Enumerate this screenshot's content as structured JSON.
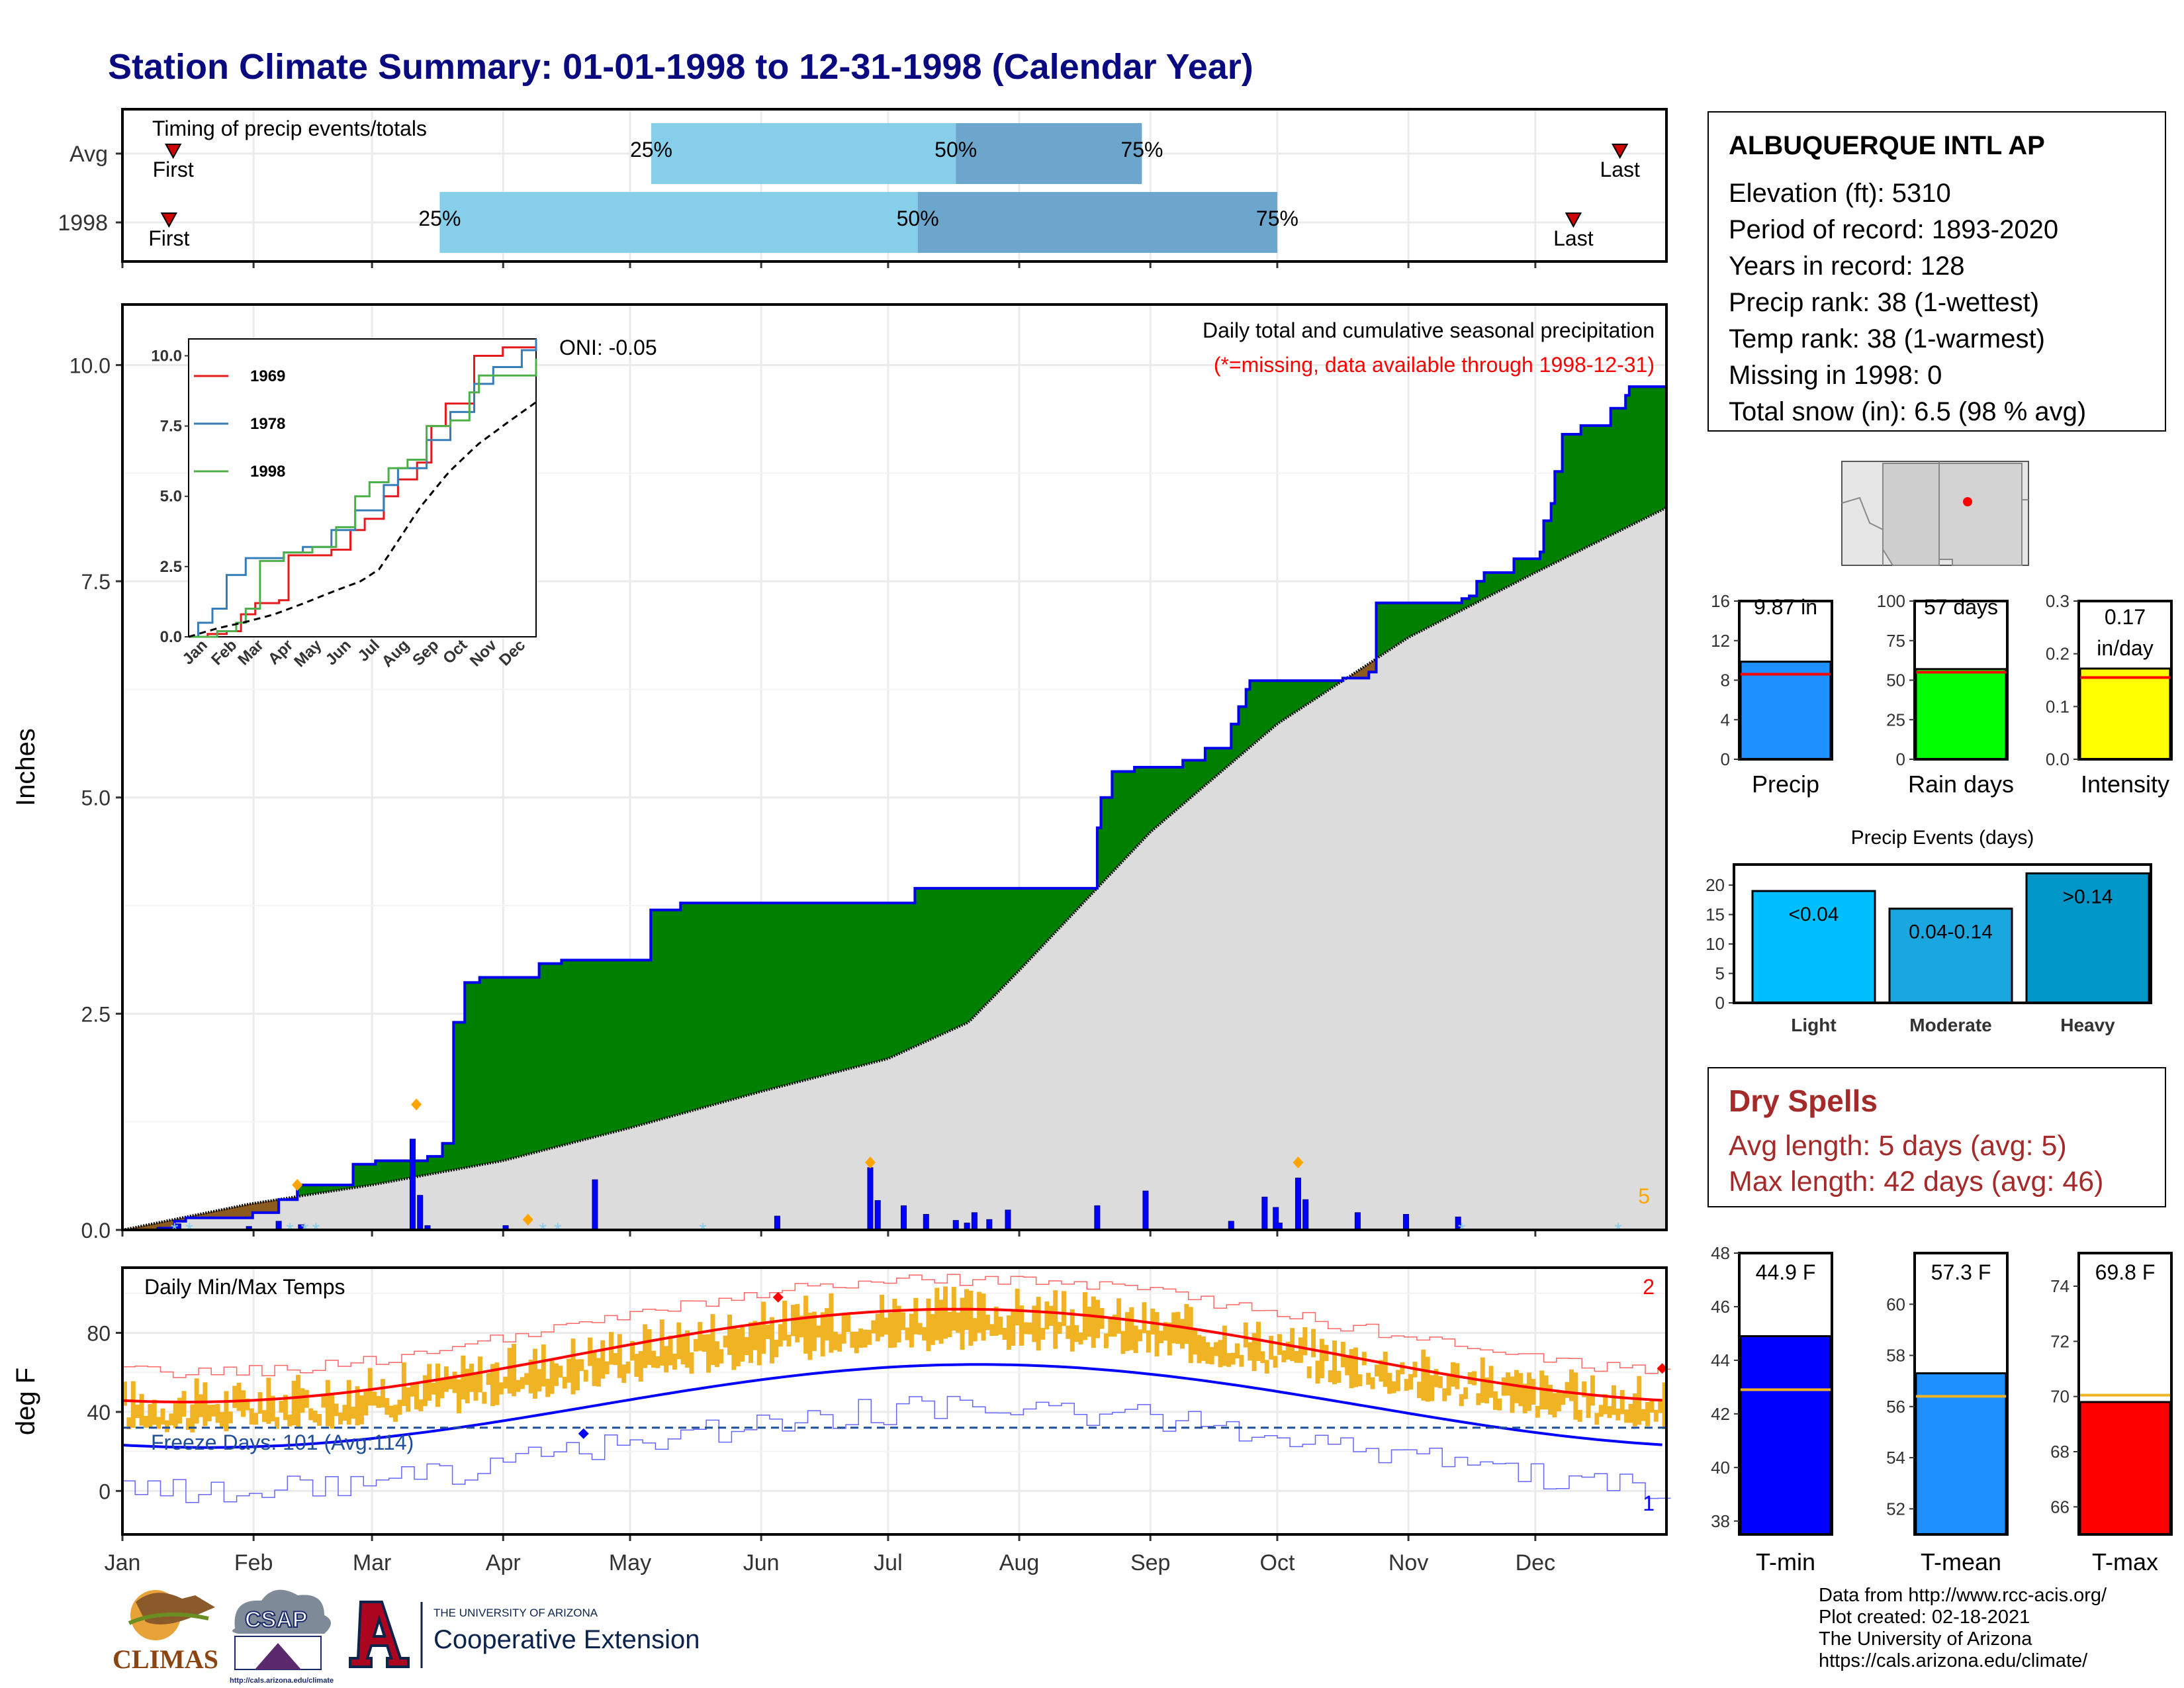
{
  "page_title": "Station Climate Summary: 01-01-1998 to 12-31-1998 (Calendar Year)",
  "timing_panel": {
    "title": "Timing of precip events/totals",
    "rows": [
      {
        "label": "Avg",
        "first_label": "First",
        "last_label": "Last",
        "first_doy": 12,
        "last_doy": 354,
        "q25_doy": 125,
        "q50_doy": 197,
        "q75_doy": 241,
        "q25_label": "25%",
        "q50_label": "50%",
        "q75_label": "75%"
      },
      {
        "label": "1998",
        "first_label": "First",
        "last_label": "Last",
        "first_doy": 11,
        "last_doy": 343,
        "q25_doy": 75,
        "q50_doy": 188,
        "q75_doy": 273,
        "q25_label": "25%",
        "q50_label": "50%",
        "q75_label": "75%"
      }
    ]
  },
  "precip_panel": {
    "ylabel": "Inches",
    "annotation_title": "Daily total and cumulative seasonal precipitation",
    "annotation_missing": "(*=missing, data available through 1998-12-31)",
    "oni": "ONI: -0.05",
    "corner_count": "5",
    "yticks": [
      "0.0",
      "2.5",
      "5.0",
      "7.5",
      "10.0"
    ]
  },
  "inset": {
    "yticks": [
      "0.0",
      "2.5",
      "5.0",
      "7.5",
      "10.0"
    ],
    "xticks": [
      "Jan",
      "Feb",
      "Mar",
      "Apr",
      "May",
      "Jun",
      "Jul",
      "Aug",
      "Sep",
      "Oct",
      "Nov",
      "Dec"
    ],
    "legend": [
      "1969",
      "1978",
      "1998"
    ]
  },
  "temp_panel": {
    "title": "Daily Min/Max Temps",
    "ylabel": "deg F",
    "freeze_label": "Freeze Days: 101 (Avg:114)",
    "max_record_count": "2",
    "min_record_count": "1",
    "yticks": [
      "0",
      "40",
      "80"
    ]
  },
  "months": [
    "Jan",
    "Feb",
    "Mar",
    "Apr",
    "May",
    "Jun",
    "Jul",
    "Aug",
    "Sep",
    "Oct",
    "Nov",
    "Dec"
  ],
  "station": {
    "name": "ALBUQUERQUE INTL AP",
    "rows": [
      "Elevation (ft): 5310",
      "Period of record: 1893-2020",
      "Years in record: 128",
      "Precip rank: 38 (1-wettest)",
      "Temp rank: 38 (1-warmest)",
      "Missing in 1998: 0",
      "Total snow (in): 6.5 (98 % avg)"
    ]
  },
  "summary_bars": [
    {
      "name": "Precip",
      "label": "9.87 in",
      "value": 9.87,
      "avg": 8.6,
      "ymax": 16,
      "yticks": [
        "0",
        "4",
        "8",
        "12",
        "16"
      ],
      "color": "#1e90ff"
    },
    {
      "name": "Rain days",
      "label": "57 days",
      "value": 57,
      "avg": 55,
      "ymax": 100,
      "yticks": [
        "0",
        "25",
        "50",
        "75",
        "100"
      ],
      "color": "#00ff00"
    },
    {
      "name": "Intensity",
      "label": "0.17 in/day",
      "label_l1": "0.17",
      "label_l2": "in/day",
      "value": 0.172,
      "avg": 0.155,
      "ymax": 0.3,
      "yticks": [
        "0.0",
        "0.1",
        "0.2",
        "0.3"
      ],
      "color": "#ffff00"
    }
  ],
  "precip_events": {
    "title": "Precip Events (days)",
    "yticks": [
      "0",
      "5",
      "10",
      "15",
      "20"
    ],
    "bars": [
      {
        "category": "Light",
        "label": "<0.04",
        "value": 19,
        "color": "#00bfff"
      },
      {
        "category": "Moderate",
        "label": "0.04-0.14",
        "value": 16,
        "color": "#1aa7e0"
      },
      {
        "category": "Heavy",
        "label": ">0.14",
        "value": 22,
        "color": "#0096c8"
      }
    ]
  },
  "dry_spells": {
    "title": "Dry Spells",
    "avg_length": "Avg length: 5 days (avg: 5)",
    "max_length": "Max length: 42 days (avg: 46)"
  },
  "temp_bars": [
    {
      "name": "T-min",
      "label": "44.9 F",
      "value": 44.9,
      "avg": 42.9,
      "ymin": 37.5,
      "ymax": 48,
      "yticks": [
        "38",
        "40",
        "42",
        "44",
        "46",
        "48"
      ],
      "color": "#0000ff"
    },
    {
      "name": "T-mean",
      "label": "57.3 F",
      "value": 57.3,
      "avg": 56.4,
      "ymin": 51,
      "ymax": 62,
      "yticks": [
        "52",
        "54",
        "56",
        "58",
        "60"
      ],
      "color": "#1e90ff"
    },
    {
      "name": "T-max",
      "label": "69.8 F",
      "value": 69.8,
      "avg": 70.05,
      "ymin": 65,
      "ymax": 75.2,
      "yticks": [
        "66",
        "68",
        "70",
        "72",
        "74"
      ],
      "color": "#ff0000"
    }
  ],
  "credits": [
    "Data from http://www.rcc-acis.org/",
    "Plot created: 02-18-2021",
    "The University of Arizona",
    "https://cals.arizona.edu/climate/"
  ],
  "logos": {
    "climas": "CLIMAS",
    "csap": "CSAP",
    "csap_url": "http://cals.arizona.edu/climate",
    "ua_line1": "THE UNIVERSITY OF ARIZONA",
    "ua_line2": "Cooperative Extension"
  },
  "chart_data": {
    "type": "area",
    "title": "Station Climate Summary: 01-01-1998 to 12-31-1998 (Calendar Year)",
    "ylabel": "Inches",
    "ylim": [
      0,
      10.7
    ],
    "cumulative_1998": [
      [
        0,
        0
      ],
      [
        10,
        0.02
      ],
      [
        14,
        0.1
      ],
      [
        17,
        0.14
      ],
      [
        28,
        0.14
      ],
      [
        35,
        0.2
      ],
      [
        42,
        0.35
      ],
      [
        47,
        0.52
      ],
      [
        53,
        0.52
      ],
      [
        62,
        0.76
      ],
      [
        68,
        0.8
      ],
      [
        82,
        0.85
      ],
      [
        86,
        1.0
      ],
      [
        89,
        2.4
      ],
      [
        92,
        2.86
      ],
      [
        96,
        2.92
      ],
      [
        110,
        2.92
      ],
      [
        112,
        3.08
      ],
      [
        118,
        3.12
      ],
      [
        140,
        3.12
      ],
      [
        142,
        3.7
      ],
      [
        150,
        3.78
      ],
      [
        210,
        3.78
      ],
      [
        213,
        3.95
      ],
      [
        240,
        3.95
      ],
      [
        262,
        4.65
      ],
      [
        263,
        5.0
      ],
      [
        266,
        5.3
      ],
      [
        272,
        5.35
      ],
      [
        285,
        5.43
      ],
      [
        291,
        5.57
      ],
      [
        297,
        5.57
      ],
      [
        298,
        5.85
      ],
      [
        300,
        6.05
      ],
      [
        302,
        6.25
      ],
      [
        303,
        6.35
      ],
      [
        315,
        6.35
      ],
      [
        328,
        6.38
      ],
      [
        335,
        6.45
      ],
      [
        337,
        7.25
      ],
      [
        340,
        7.25
      ],
      [
        360,
        7.3
      ],
      [
        362,
        7.33
      ],
      [
        364,
        7.5
      ],
      [
        366,
        7.6
      ],
      [
        374,
        7.76
      ],
      [
        381,
        7.84
      ],
      [
        382,
        8.2
      ],
      [
        384,
        8.4
      ],
      [
        385,
        8.77
      ],
      [
        387,
        9.2
      ],
      [
        392,
        9.3
      ],
      [
        400,
        9.5
      ],
      [
        404,
        9.65
      ],
      [
        405,
        9.75
      ],
      [
        415,
        9.87
      ]
    ],
    "cumulative_avg": [
      [
        0,
        0
      ],
      [
        30,
        0.3
      ],
      [
        59,
        0.52
      ],
      [
        90,
        0.8
      ],
      [
        120,
        1.18
      ],
      [
        151,
        1.6
      ],
      [
        181,
        1.98
      ],
      [
        200,
        2.4
      ],
      [
        212,
        3.0
      ],
      [
        243,
        4.6
      ],
      [
        273,
        5.85
      ],
      [
        304,
        6.85
      ],
      [
        334,
        7.6
      ],
      [
        365,
        8.35
      ]
    ],
    "daily_precip": [
      [
        10,
        0.03
      ],
      [
        15,
        0.07
      ],
      [
        34,
        0.04
      ],
      [
        42,
        0.1
      ],
      [
        48,
        0.06
      ],
      [
        78,
        1.05
      ],
      [
        80,
        0.4
      ],
      [
        82,
        0.05
      ],
      [
        103,
        0.05
      ],
      [
        127,
        0.58
      ],
      [
        176,
        0.16
      ],
      [
        201,
        0.72
      ],
      [
        203,
        0.34
      ],
      [
        210,
        0.28
      ],
      [
        216,
        0.18
      ],
      [
        224,
        0.11
      ],
      [
        227,
        0.08
      ],
      [
        229,
        0.2
      ],
      [
        233,
        0.12
      ],
      [
        238,
        0.23
      ],
      [
        262,
        0.28
      ],
      [
        275,
        0.45
      ],
      [
        298,
        0.1
      ],
      [
        307,
        0.38
      ],
      [
        310,
        0.26
      ],
      [
        311,
        0.08
      ],
      [
        316,
        0.6
      ],
      [
        318,
        0.35
      ],
      [
        332,
        0.2
      ],
      [
        345,
        0.18
      ],
      [
        359,
        0.15
      ]
    ],
    "temp_1998_max_approx": [
      [
        0,
        45
      ],
      [
        31,
        50
      ],
      [
        59,
        57
      ],
      [
        90,
        70
      ],
      [
        120,
        78
      ],
      [
        151,
        89
      ],
      [
        181,
        93
      ],
      [
        212,
        88
      ],
      [
        243,
        84
      ],
      [
        273,
        72
      ],
      [
        304,
        60
      ],
      [
        334,
        48
      ],
      [
        364,
        46
      ]
    ],
    "temp_1998_min_approx": [
      [
        0,
        22
      ],
      [
        31,
        26
      ],
      [
        59,
        32
      ],
      [
        90,
        40
      ],
      [
        120,
        48
      ],
      [
        151,
        58
      ],
      [
        181,
        66
      ],
      [
        212,
        64
      ],
      [
        243,
        58
      ],
      [
        273,
        46
      ],
      [
        304,
        34
      ],
      [
        334,
        26
      ],
      [
        364,
        24
      ]
    ],
    "freeze_days": 101,
    "freeze_days_avg": 114
  }
}
